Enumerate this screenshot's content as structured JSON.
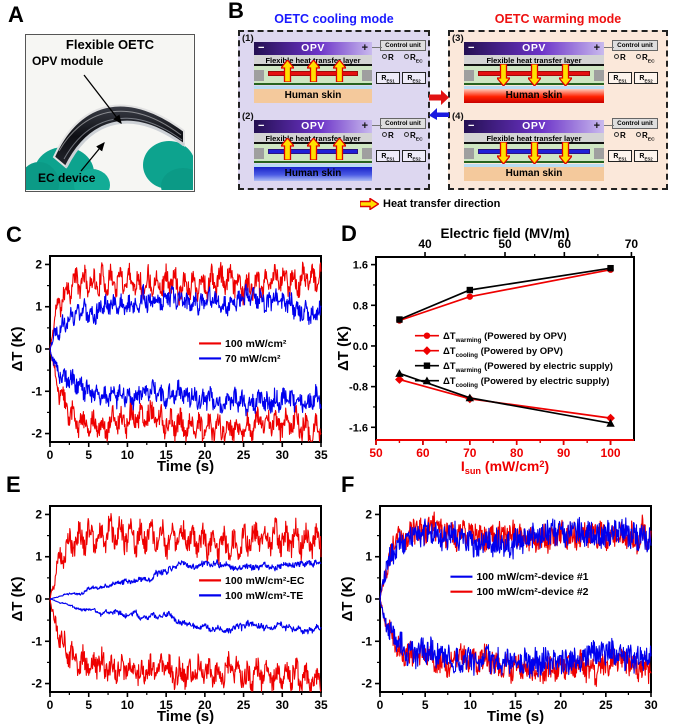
{
  "panels": {
    "a": "A",
    "b": "B",
    "c": "C",
    "d": "D",
    "e": "E",
    "f": "F"
  },
  "panel_a": {
    "title": "Flexible OETC",
    "label_opv": "OPV module",
    "label_ec": "EC device",
    "glove_color": "#0da38e",
    "device_color": "#0e0f14"
  },
  "panel_b": {
    "cooling_title": "OETC cooling mode",
    "warming_title": "OETC warming mode",
    "cooling_color": "#1a1aff",
    "warming_color": "#ee1010",
    "heat_legend": "Heat transfer direction",
    "box_bg": {
      "cool": "#ddd7f0",
      "warm": "#fbe8da"
    },
    "labels": {
      "opv": "OPV",
      "minus": "−",
      "plus": "+",
      "fht": "Flexible heat transfer layer",
      "skin": "Human skin"
    },
    "control_unit": {
      "title": "Control unit",
      "switch1": {
        "base": "R",
        "sub": ""
      },
      "switch2": {
        "base": "R",
        "sub": "EC"
      },
      "res1": {
        "base": "R",
        "sub": "ES1"
      },
      "res2": {
        "base": "R",
        "sub": "ES2"
      }
    },
    "diagrams": [
      {
        "num": "(1)",
        "box": "cool",
        "ec_color": "#e51010",
        "arrow_dir": "up",
        "skin_state": "normal"
      },
      {
        "num": "(2)",
        "box": "cool",
        "ec_color": "#2020d8",
        "arrow_dir": "up",
        "skin_state": "cold"
      },
      {
        "num": "(3)",
        "box": "warm",
        "ec_color": "#e51010",
        "arrow_dir": "down",
        "skin_state": "warm"
      },
      {
        "num": "(4)",
        "box": "warm",
        "ec_color": "#2020d8",
        "arrow_dir": "down",
        "skin_state": "normal"
      }
    ],
    "arrow_colors": {
      "fill": "#ffe000",
      "stroke": "#e00000",
      "mode_right": "#e21313",
      "mode_left": "#1a1ae0"
    }
  },
  "chart_data": [
    {
      "id": "c",
      "type": "line",
      "xlabel": "Time (s)",
      "ylabel": "ΔT (K)",
      "xlim": [
        0,
        35
      ],
      "ylim": [
        -2.2,
        2.2
      ],
      "xticks": [
        0,
        5,
        10,
        15,
        20,
        25,
        30,
        35
      ],
      "yticks": [
        -2,
        -1,
        0,
        1,
        2
      ],
      "grid": false,
      "legend_position": "middle-right",
      "series_note": "noisy experimental traces, parameterized: plateau=steady ΔT (K), tau_s=rise time, noise_amp=jitter",
      "series": [
        {
          "name": "100 mW/cm²",
          "branch": "warming",
          "color": "#ee0000",
          "plateau": 1.62,
          "tau_s": 1.1,
          "noise_amp": 0.24,
          "osc_amp": 0.2,
          "osc_hz": 0.85,
          "seed": 11
        },
        {
          "name": "100 mW/cm²",
          "branch": "cooling",
          "color": "#ee0000",
          "plateau": -1.78,
          "tau_s": 1.6,
          "noise_amp": 0.24,
          "osc_amp": 0.18,
          "osc_hz": 0.8,
          "seed": 44
        },
        {
          "name": "70 mW/cm²",
          "branch": "warming",
          "color": "#0000ee",
          "plateau": 1.02,
          "tau_s": 1.2,
          "noise_amp": 0.2,
          "osc_amp": 0.1,
          "osc_hz": 1.05,
          "seed": 22
        },
        {
          "name": "70 mW/cm²",
          "branch": "cooling",
          "color": "#0000ee",
          "plateau": -1.15,
          "tau_s": 1.4,
          "noise_amp": 0.2,
          "osc_amp": 0.1,
          "osc_hz": 0.95,
          "seed": 33
        }
      ],
      "legend": [
        {
          "label": "100 mW/cm²",
          "color": "#ee0000"
        },
        {
          "label": "70 mW/cm²",
          "color": "#0000ee"
        }
      ]
    },
    {
      "id": "d",
      "type": "scatter-line",
      "top_xlabel": "Electric field (MV/m)",
      "xlabel_parts": [
        {
          "t": "I"
        },
        {
          "t": "sun",
          "sub": true
        },
        {
          "t": " (mW/cm"
        },
        {
          "t": "2",
          "sup": true
        },
        {
          "t": ")"
        }
      ],
      "ylabel": "ΔT (K)",
      "xlim": [
        50,
        105
      ],
      "ylim": [
        -1.85,
        1.75
      ],
      "xticks": [
        50,
        60,
        70,
        80,
        90,
        100
      ],
      "yticks": [
        -1.6,
        -0.8,
        0.0,
        0.8,
        1.6
      ],
      "top_ticks": {
        "labels": [
          "40",
          "50",
          "60",
          "70"
        ],
        "fracs": [
          0.19,
          0.5,
          0.73,
          0.99
        ],
        "minor_fracs": [
          0.345,
          0.615,
          0.86
        ]
      },
      "x_axis_color": "#ee0000",
      "x": [
        55,
        70,
        100
      ],
      "series": [
        {
          "name": "ΔT_warming (Powered by OPV)",
          "color": "#ee0000",
          "marker": "circle",
          "values": [
            0.5,
            0.97,
            1.5
          ],
          "label_parts": [
            {
              "t": "ΔT"
            },
            {
              "t": "warming",
              "sub": true
            },
            {
              "t": " (Powered by OPV)"
            }
          ]
        },
        {
          "name": "ΔT_cooling (Powered by OPV)",
          "color": "#ee0000",
          "marker": "diamond",
          "values": [
            -0.66,
            -1.04,
            -1.42
          ],
          "label_parts": [
            {
              "t": "ΔT"
            },
            {
              "t": "cooling",
              "sub": true
            },
            {
              "t": " (Powered by OPV)"
            }
          ]
        },
        {
          "name": "ΔT_warming (Powered by electric supply)",
          "color": "#000000",
          "marker": "square",
          "values": [
            0.52,
            1.1,
            1.53
          ],
          "label_parts": [
            {
              "t": "ΔT"
            },
            {
              "t": "warming",
              "sub": true
            },
            {
              "t": " (Powered by electric supply)"
            }
          ]
        },
        {
          "name": "ΔT_cooling (Powered by electric supply)",
          "color": "#000000",
          "marker": "triangle",
          "values": [
            -0.54,
            -1.02,
            -1.52
          ],
          "label_parts": [
            {
              "t": "ΔT"
            },
            {
              "t": "cooling",
              "sub": true
            },
            {
              "t": " (Powered by electric supply)"
            }
          ]
        }
      ]
    },
    {
      "id": "e",
      "type": "line",
      "xlabel": "Time (s)",
      "ylabel": "ΔT (K)",
      "xlim": [
        0,
        35
      ],
      "ylim": [
        -2.2,
        2.2
      ],
      "xticks": [
        0,
        5,
        10,
        15,
        20,
        25,
        30,
        35
      ],
      "yticks": [
        -2,
        -1,
        0,
        1,
        2
      ],
      "grid": false,
      "legend_position": "middle-right",
      "series": [
        {
          "name": "100 mW/cm²-EC",
          "branch": "warming",
          "color": "#ee0000",
          "plateau": 1.5,
          "tau_s": 1.2,
          "noise_amp": 0.26,
          "osc_amp": 0.22,
          "osc_hz": 0.75,
          "seed": 55
        },
        {
          "name": "100 mW/cm²-EC",
          "branch": "cooling",
          "color": "#ee0000",
          "plateau": -1.72,
          "tau_s": 1.7,
          "noise_amp": 0.26,
          "osc_amp": 0.16,
          "osc_hz": 0.8,
          "seed": 88
        },
        {
          "name": "100 mW/cm²-TE",
          "branch": "warming",
          "color": "#0000ee",
          "plateau": 0.95,
          "tau_s": 16,
          "noise_amp": 0.06,
          "osc_amp": 0,
          "osc_hz": 1,
          "seed": 66
        },
        {
          "name": "100 mW/cm²-TE",
          "branch": "cooling",
          "color": "#0000ee",
          "plateau": -0.78,
          "tau_s": 16,
          "noise_amp": 0.06,
          "osc_amp": 0,
          "osc_hz": 1,
          "seed": 77
        }
      ],
      "legend": [
        {
          "label": "100 mW/cm²-EC",
          "color": "#ee0000"
        },
        {
          "label": "100 mW/cm²-TE",
          "color": "#0000ee"
        }
      ]
    },
    {
      "id": "f",
      "type": "line",
      "xlabel": "Time (s)",
      "ylabel": "ΔT (K)",
      "xlim": [
        0,
        30
      ],
      "ylim": [
        -2.2,
        2.2
      ],
      "xticks": [
        0,
        5,
        10,
        15,
        20,
        25,
        30
      ],
      "yticks": [
        -2,
        -1,
        0,
        1,
        2
      ],
      "grid": false,
      "legend_position": "middle-left",
      "series": [
        {
          "name": "100 mW/cm²-device #2",
          "branch": "warming",
          "color": "#ee0000",
          "plateau": 1.52,
          "tau_s": 1.2,
          "noise_amp": 0.3,
          "osc_amp": 0.08,
          "osc_hz": 0.9,
          "seed": 202
        },
        {
          "name": "100 mW/cm²-device #2",
          "branch": "cooling",
          "color": "#ee0000",
          "plateau": -1.58,
          "tau_s": 1.5,
          "noise_amp": 0.28,
          "osc_amp": 0.08,
          "osc_hz": 0.85,
          "seed": 404
        },
        {
          "name": "100 mW/cm²-device #1",
          "branch": "warming",
          "color": "#0000ee",
          "plateau": 1.5,
          "tau_s": 1.0,
          "noise_amp": 0.3,
          "osc_amp": 0.08,
          "osc_hz": 1.0,
          "seed": 101
        },
        {
          "name": "100 mW/cm²-device #1",
          "branch": "cooling",
          "color": "#0000ee",
          "plateau": -1.5,
          "tau_s": 1.3,
          "noise_amp": 0.28,
          "osc_amp": 0.08,
          "osc_hz": 0.95,
          "seed": 303
        }
      ],
      "legend": [
        {
          "label": "100 mW/cm²-device #1",
          "color": "#0000ee"
        },
        {
          "label": "100 mW/cm²-device #2",
          "color": "#ee0000"
        }
      ]
    }
  ]
}
